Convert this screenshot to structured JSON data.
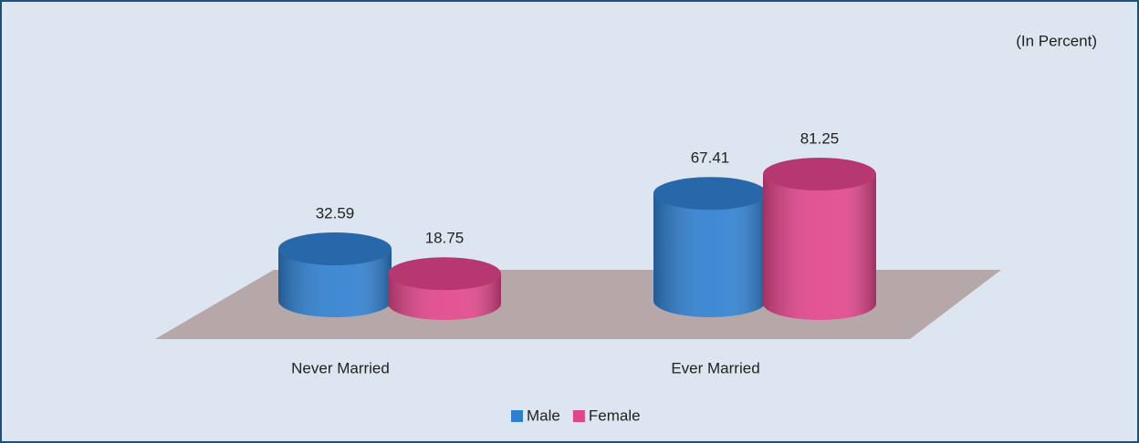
{
  "chart_data": {
    "type": "bar",
    "annotation": "(In Percent)",
    "categories": [
      "Never Married",
      "Ever Married"
    ],
    "series": [
      {
        "name": "Male",
        "color": "#2f7fcf",
        "values": [
          32.59,
          67.41
        ]
      },
      {
        "name": "Female",
        "color": "#e0458a",
        "values": [
          18.75,
          81.25
        ]
      }
    ]
  }
}
